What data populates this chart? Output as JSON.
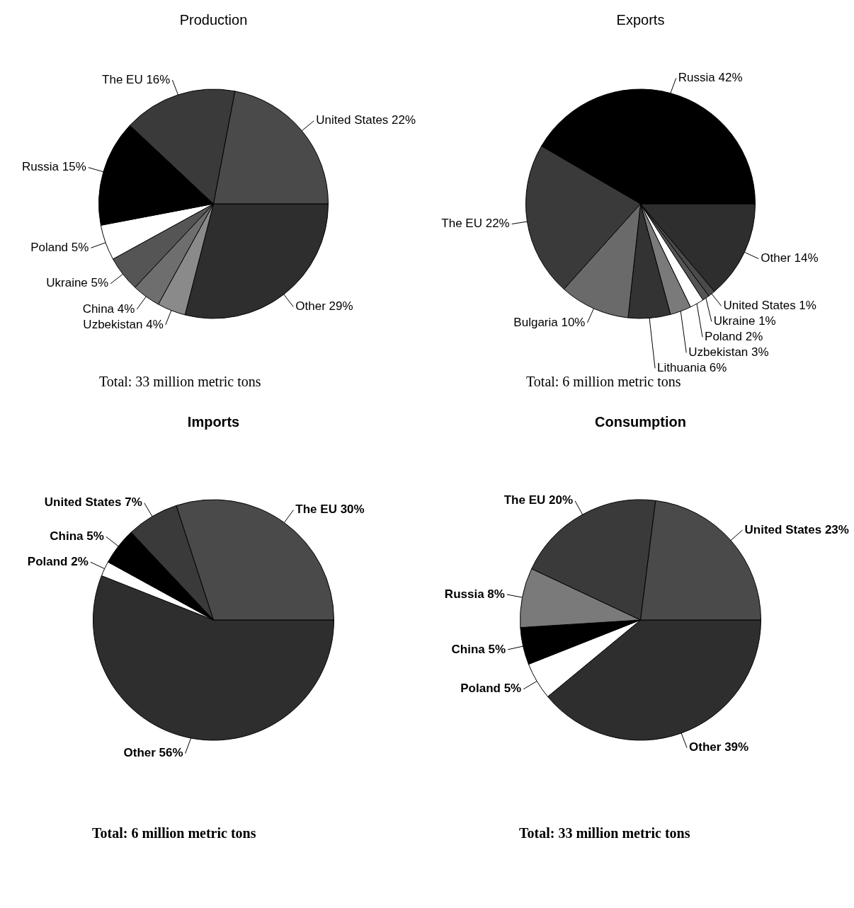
{
  "chart_data": [
    {
      "type": "pie",
      "title": "Production",
      "categories": [
        "Other",
        "Uzbekistan",
        "China",
        "Ukraine",
        "Poland",
        "Russia",
        "The EU",
        "United States"
      ],
      "values": [
        29,
        4,
        4,
        5,
        5,
        15,
        16,
        22
      ],
      "value_labels": [
        "29%",
        "4%",
        "4%",
        "5%",
        "5%",
        "15%",
        "16%",
        "22%"
      ],
      "colors": [
        "#2e2e2e",
        "#8a8a8a",
        "#6e6e6e",
        "#555555",
        "#ffffff",
        "#000000",
        "#3a3a3a",
        "#4a4a4a"
      ],
      "annotations": [
        "Total: 33 million metric tons"
      ],
      "legend": false
    },
    {
      "type": "pie",
      "title": "Exports",
      "categories": [
        "Other",
        "United States",
        "Ukraine",
        "Poland",
        "Uzbekistan",
        "Lithuania",
        "Bulgaria",
        "The EU",
        "Russia"
      ],
      "values": [
        14,
        1,
        1,
        2,
        3,
        6,
        10,
        22,
        42
      ],
      "value_labels": [
        "14%",
        "1%",
        "1%",
        "2%",
        "3%",
        "6%",
        "10%",
        "22%",
        "42%"
      ],
      "colors": [
        "#2e2e2e",
        "#4a4a4a",
        "#555555",
        "#ffffff",
        "#7a7a7a",
        "#333333",
        "#6a6a6a",
        "#3a3a3a",
        "#000000"
      ],
      "annotations": [
        "Total: 6 million metric tons"
      ],
      "legend": false
    },
    {
      "type": "pie",
      "title": "Imports",
      "categories": [
        "Other",
        "Poland",
        "China",
        "United States",
        "The EU"
      ],
      "values": [
        56,
        2,
        5,
        7,
        30
      ],
      "value_labels": [
        "56%",
        "2%",
        "5%",
        "7%",
        "30%"
      ],
      "colors": [
        "#2e2e2e",
        "#ffffff",
        "#000000",
        "#3a3a3a",
        "#4a4a4a"
      ],
      "annotations": [
        "Total: 6 million metric tons"
      ],
      "legend": false
    },
    {
      "type": "pie",
      "title": "Consumption",
      "categories": [
        "Other",
        "Poland",
        "China",
        "Russia",
        "The EU",
        "United States"
      ],
      "values": [
        39,
        5,
        5,
        8,
        20,
        23
      ],
      "value_labels": [
        "39%",
        "5%",
        "5%",
        "8%",
        "20%",
        "23%"
      ],
      "colors": [
        "#2e2e2e",
        "#ffffff",
        "#000000",
        "#7a7a7a",
        "#3a3a3a",
        "#4a4a4a"
      ],
      "annotations": [
        "Total: 33 million metric tons"
      ],
      "legend": false
    }
  ]
}
